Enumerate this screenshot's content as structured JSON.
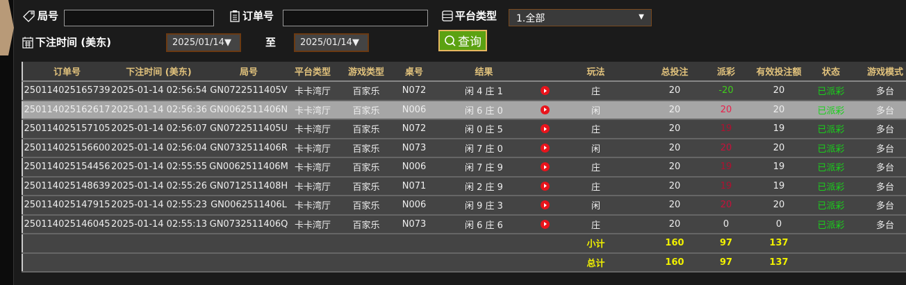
{
  "filters": {
    "round_label": "局号",
    "round_value": "",
    "order_label": "订单号",
    "order_value": "",
    "platform_label": "平台类型",
    "platform_value": "1.全部",
    "time_label": "下注时间 (美东)",
    "date_from": "2025/01/14",
    "to_label": "至",
    "date_to": "2025/01/14",
    "query_label": "查询"
  },
  "table": {
    "headers": [
      "订单号",
      "下注时间 (美东)",
      "局号",
      "平台类型",
      "游戏类型",
      "桌号",
      "结果",
      "",
      "玩法",
      "总投注",
      "派彩",
      "有效投注额",
      "状态",
      "游戏模式"
    ],
    "rows": [
      {
        "order": "250114025165739",
        "time": "2025-01-14 02:56:54",
        "round": "GN0722511405V",
        "platform": "卡卡湾厅",
        "game": "百家乐",
        "table": "N072",
        "result": "闲 4 庄 1",
        "play": "庄",
        "bet": "20",
        "payout": "-20",
        "payout_color": "#3fcf1a",
        "valid": "20",
        "status": "已派彩",
        "mode": "多台"
      },
      {
        "order": "250114025162617",
        "time": "2025-01-14 02:56:36",
        "round": "GN0062511406N",
        "platform": "卡卡湾厅",
        "game": "百家乐",
        "table": "N006",
        "result": "闲 6 庄 0",
        "play": "闲",
        "bet": "20",
        "payout": "20",
        "payout_color": "#e8204a",
        "valid": "20",
        "status": "已派彩",
        "mode": "多台",
        "selected": true
      },
      {
        "order": "250114025157105",
        "time": "2025-01-14 02:56:07",
        "round": "GN0722511405U",
        "platform": "卡卡湾厅",
        "game": "百家乐",
        "table": "N072",
        "result": "闲 0 庄 5",
        "play": "庄",
        "bet": "20",
        "payout": "19",
        "payout_color": "#b01030",
        "valid": "19",
        "status": "已派彩",
        "mode": "多台"
      },
      {
        "order": "250114025156600",
        "time": "2025-01-14 02:56:04",
        "round": "GN0732511406R",
        "platform": "卡卡湾厅",
        "game": "百家乐",
        "table": "N073",
        "result": "闲 7 庄 0",
        "play": "闲",
        "bet": "20",
        "payout": "20",
        "payout_color": "#c8103a",
        "valid": "20",
        "status": "已派彩",
        "mode": "多台"
      },
      {
        "order": "250114025154456",
        "time": "2025-01-14 02:55:55",
        "round": "GN0062511406M",
        "platform": "卡卡湾厅",
        "game": "百家乐",
        "table": "N006",
        "result": "闲 7 庄 9",
        "play": "庄",
        "bet": "20",
        "payout": "19",
        "payout_color": "#b01030",
        "valid": "19",
        "status": "已派彩",
        "mode": "多台"
      },
      {
        "order": "250114025148639",
        "time": "2025-01-14 02:55:26",
        "round": "GN0712511408H",
        "platform": "卡卡湾厅",
        "game": "百家乐",
        "table": "N071",
        "result": "闲 2 庄 9",
        "play": "庄",
        "bet": "20",
        "payout": "19",
        "payout_color": "#b01030",
        "valid": "19",
        "status": "已派彩",
        "mode": "多台"
      },
      {
        "order": "250114025147915",
        "time": "2025-01-14 02:55:23",
        "round": "GN0062511406L",
        "platform": "卡卡湾厅",
        "game": "百家乐",
        "table": "N006",
        "result": "闲 9 庄 3",
        "play": "闲",
        "bet": "20",
        "payout": "20",
        "payout_color": "#c8103a",
        "valid": "20",
        "status": "已派彩",
        "mode": "多台"
      },
      {
        "order": "250114025146045",
        "time": "2025-01-14 02:55:13",
        "round": "GN0732511406Q",
        "platform": "卡卡湾厅",
        "game": "百家乐",
        "table": "N073",
        "result": "闲 6 庄 6",
        "play": "庄",
        "bet": "20",
        "payout": "0",
        "payout_color": "#eeeeee",
        "valid": "0",
        "status": "已派彩",
        "mode": "多台"
      }
    ],
    "subtotal": {
      "label": "小计",
      "bet": "160",
      "payout": "97",
      "valid": "137"
    },
    "total": {
      "label": "总计",
      "bet": "160",
      "payout": "97",
      "valid": "137"
    }
  }
}
